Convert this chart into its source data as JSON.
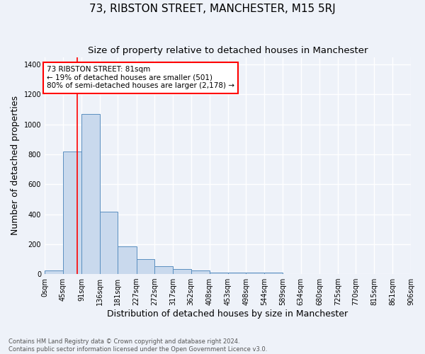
{
  "title": "73, RIBSTON STREET, MANCHESTER, M15 5RJ",
  "subtitle": "Size of property relative to detached houses in Manchester",
  "xlabel": "Distribution of detached houses by size in Manchester",
  "ylabel": "Number of detached properties",
  "footnote1": "Contains HM Land Registry data © Crown copyright and database right 2024.",
  "footnote2": "Contains public sector information licensed under the Open Government Licence v3.0.",
  "bar_edges": [
    0,
    45,
    91,
    136,
    181,
    227,
    272,
    317,
    362,
    408,
    453,
    498,
    544,
    589,
    634,
    680,
    725,
    770,
    815,
    861,
    906
  ],
  "bar_heights": [
    25,
    820,
    1070,
    415,
    185,
    100,
    52,
    35,
    22,
    12,
    10,
    10,
    10,
    0,
    0,
    0,
    0,
    0,
    0,
    0
  ],
  "tick_labels": [
    "0sqm",
    "45sqm",
    "91sqm",
    "136sqm",
    "181sqm",
    "227sqm",
    "272sqm",
    "317sqm",
    "362sqm",
    "408sqm",
    "453sqm",
    "498sqm",
    "544sqm",
    "589sqm",
    "634sqm",
    "680sqm",
    "725sqm",
    "770sqm",
    "815sqm",
    "861sqm",
    "906sqm"
  ],
  "bar_color": "#c9d9ed",
  "bar_edge_color": "#5a8fc0",
  "red_line_x": 81,
  "annotation_text": "73 RIBSTON STREET: 81sqm\n← 19% of detached houses are smaller (501)\n80% of semi-detached houses are larger (2,178) →",
  "annotation_box_color": "white",
  "annotation_box_edge": "red",
  "ylim": [
    0,
    1450
  ],
  "yticks": [
    0,
    200,
    400,
    600,
    800,
    1000,
    1200,
    1400
  ],
  "background_color": "#eef2f9",
  "grid_color": "white",
  "title_fontsize": 11,
  "subtitle_fontsize": 9.5,
  "xlabel_fontsize": 9,
  "ylabel_fontsize": 9,
  "annot_fontsize": 7.5,
  "footnote_fontsize": 6,
  "tick_fontsize": 7
}
